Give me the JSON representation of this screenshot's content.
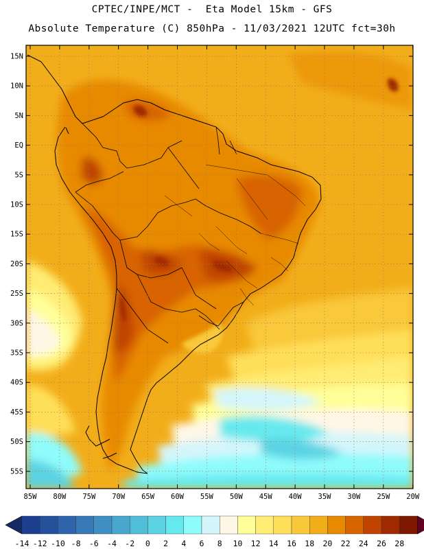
{
  "header": {
    "line1": "CPTEC/INPE/MCT -  Eta Model 15km - GFS",
    "line2": "Absolute Temperature (C) 850hPa - 11/03/2021 12UTC fct=30h"
  },
  "map": {
    "lat_labels": [
      "15N",
      "10N",
      "5N",
      "EQ",
      "5S",
      "10S",
      "15S",
      "20S",
      "25S",
      "30S",
      "35S",
      "40S",
      "45S",
      "50S",
      "55S"
    ],
    "lon_labels": [
      "85W",
      "80W",
      "75W",
      "70W",
      "65W",
      "60W",
      "55W",
      "50W",
      "45W",
      "40W",
      "35W",
      "30W",
      "25W",
      "20W"
    ]
  },
  "legend": {
    "labels": [
      "-14",
      "-12",
      "-10",
      "-8",
      "-6",
      "-4",
      "-2",
      "0",
      "2",
      "4",
      "6",
      "8",
      "10",
      "12",
      "14",
      "16",
      "18",
      "20",
      "22",
      "24",
      "26",
      "28"
    ],
    "colors": [
      "#1c3f8f",
      "#24509c",
      "#2d64ab",
      "#3779b7",
      "#3f8fc2",
      "#49a6cc",
      "#52bdd7",
      "#5bd3e3",
      "#66e9ee",
      "#8ffbfb",
      "#d4f6fb",
      "#fff7e6",
      "#ffff99",
      "#ffec75",
      "#ffdf5a",
      "#f9c83a",
      "#f2ae1a",
      "#e88a00",
      "#d86400",
      "#c04400",
      "#a02a00",
      "#7d1700"
    ],
    "low_arrow_color": "#142a66",
    "high_arrow_color": "#660020"
  }
}
